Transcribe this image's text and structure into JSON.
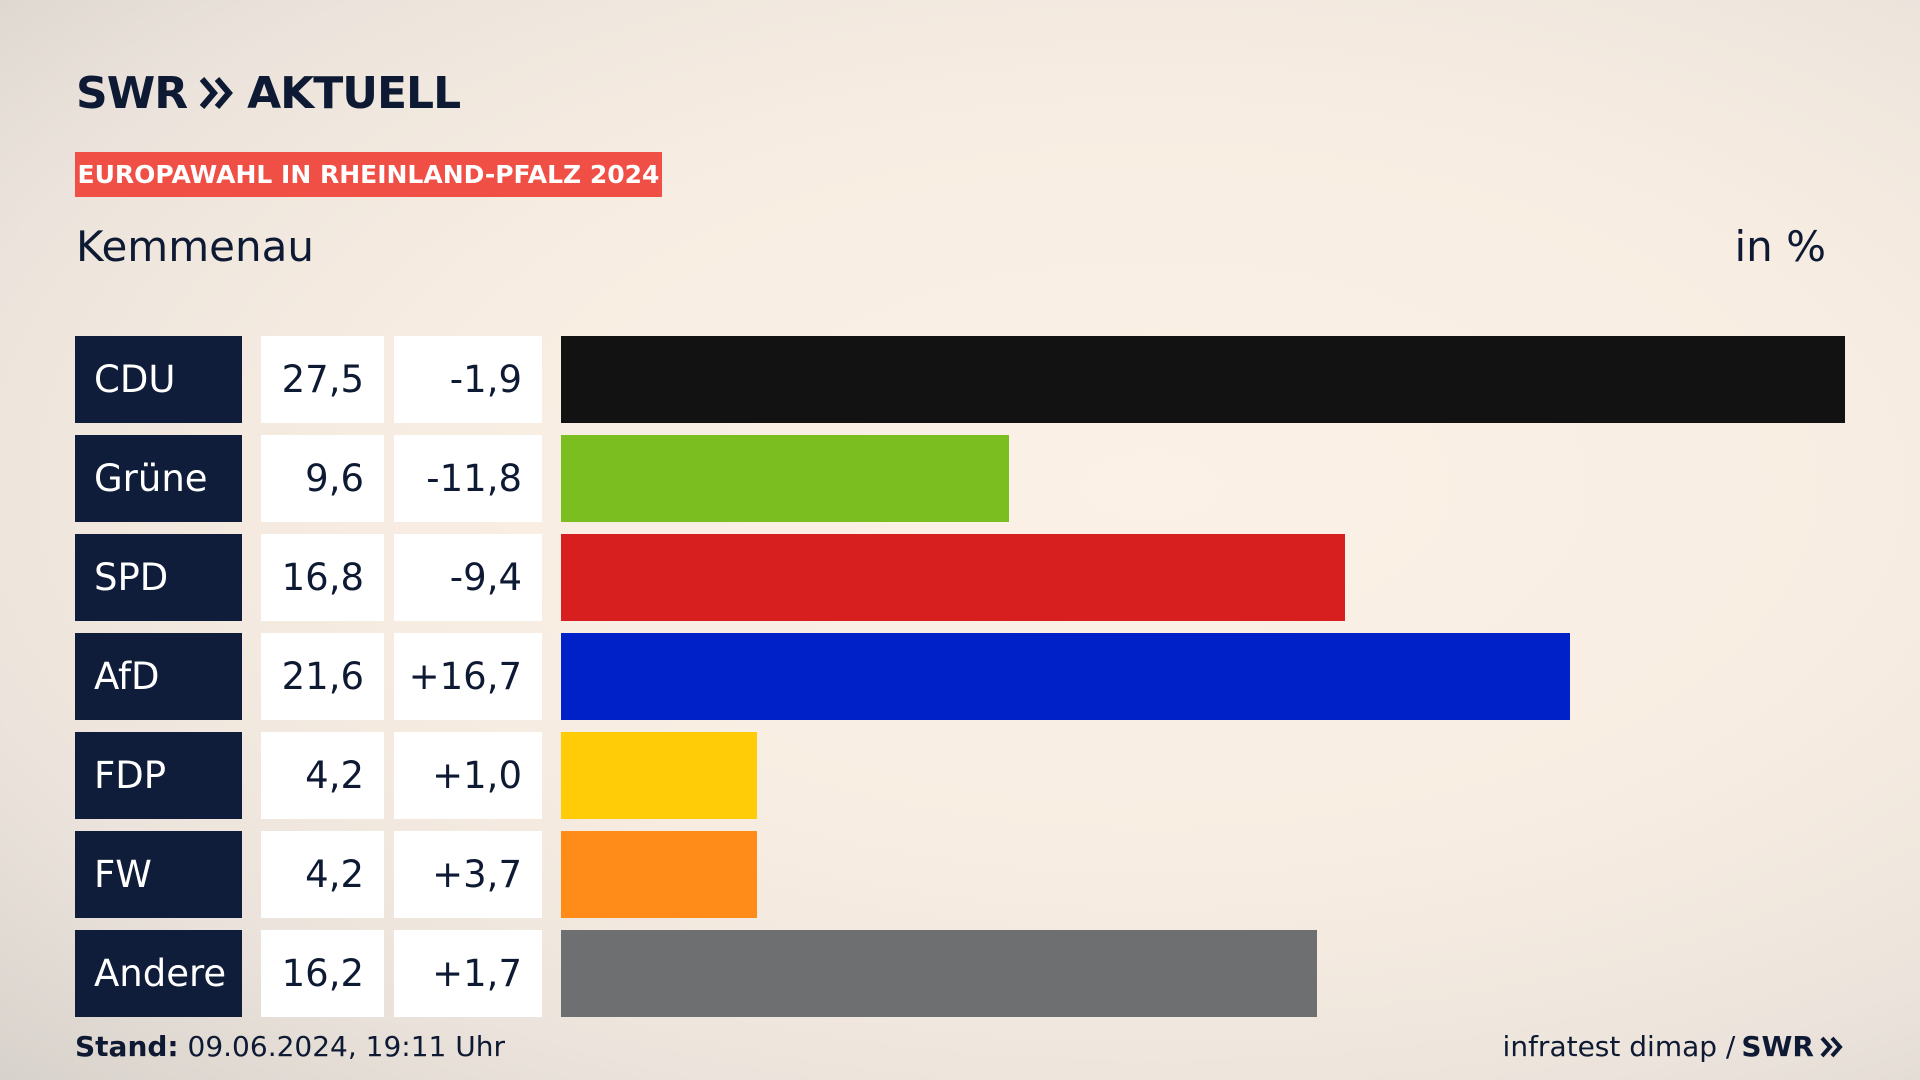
{
  "brand": {
    "logo_left": "SWR",
    "logo_right": "AKTUELL",
    "footer_logo": "SWR"
  },
  "header": {
    "badge": "EUROPAWAHL IN RHEINLAND-PFALZ 2024",
    "place": "Kemmenau",
    "unit": "in %"
  },
  "footer": {
    "stand_label": "Stand:",
    "stand_value": "09.06.2024, 19:11 Uhr",
    "source": "infratest dimap /"
  },
  "colors": {
    "CDU": "#121212",
    "Grüne": "#7bbe1f",
    "SPD": "#d71f1f",
    "AfD": "#0021c8",
    "FDP": "#ffcc07",
    "FW": "#ff8c18",
    "Andere": "#6e6f71"
  },
  "chart_data": {
    "type": "bar",
    "orientation": "horizontal",
    "title": "EUROPAWAHL IN RHEINLAND-PFALZ 2024",
    "subtitle": "Kemmenau",
    "unit": "in %",
    "categories": [
      "CDU",
      "Grüne",
      "SPD",
      "AfD",
      "FDP",
      "FW",
      "Andere"
    ],
    "values": [
      27.5,
      9.6,
      16.8,
      21.6,
      4.2,
      4.2,
      16.2
    ],
    "value_labels": [
      "27,5",
      "9,6",
      "16,8",
      "21,6",
      "4,2",
      "4,2",
      "16,2"
    ],
    "diff_labels": [
      "-1,9",
      "-11,8",
      "-9,4",
      "+16,7",
      "+1,0",
      "+3,7",
      "+1,7"
    ],
    "diffs": [
      -1.9,
      -11.8,
      -9.4,
      16.7,
      1.0,
      3.7,
      1.7
    ],
    "xlim": [
      0,
      27.5
    ]
  }
}
